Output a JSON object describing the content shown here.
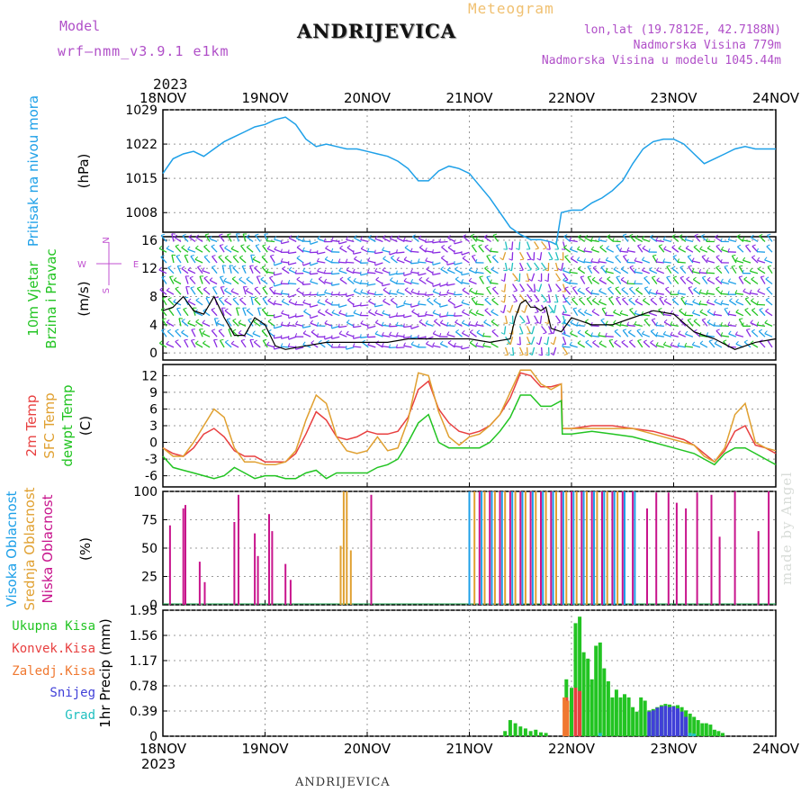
{
  "header": {
    "model_label": "Model",
    "model_name": "wrf–nmm_v3.9.1  e1km",
    "station": "ANDRIJEVICA",
    "meteogram": "Meteogram",
    "lonlat": "lon,lat (19.7812E, 42.7188N)",
    "elevation": "Nadmorska Visina 779m",
    "model_elevation": "Nadmorska Visina u modelu 1045.44m",
    "year_top": "2023"
  },
  "footer": {
    "station": "ANDRIJEVICA",
    "credit": "made by Angel"
  },
  "colors": {
    "pressure": "#1ea0e8",
    "wind_green": "#22c422",
    "wind_label": "#c050d0",
    "t2m": "#e84040",
    "tsfc": "#e0a030",
    "dewp": "#22c422",
    "high_cloud": "#1ea0e8",
    "mid_cloud": "#e0a030",
    "low_cloud": "#c8148c",
    "total_precip": "#22c422",
    "conv": "#e84040",
    "frz": "#f07830",
    "snow": "#4040d8",
    "hail": "#20c0c0"
  },
  "chart_data": [
    {
      "type": "line",
      "title": "Pritisak na nivou mora",
      "ylabel": "(hPa)",
      "ylim": [
        1004,
        1029
      ],
      "yticks": [
        "1029",
        "1022",
        "1015",
        "1008"
      ],
      "ytick_values": [
        1029,
        1022,
        1015,
        1008
      ],
      "x_tick_labels": [
        "18NOV",
        "19NOV",
        "20NOV",
        "21NOV",
        "22NOV",
        "23NOV",
        "24NOV"
      ],
      "xlim_days": [
        0,
        6
      ],
      "grid": true,
      "series": [
        {
          "name": "Pritisak na nivou mora",
          "x": [
            0,
            0.1,
            0.2,
            0.3,
            0.4,
            0.5,
            0.6,
            0.7,
            0.8,
            0.9,
            1.0,
            1.1,
            1.2,
            1.3,
            1.4,
            1.5,
            1.6,
            1.7,
            1.8,
            1.9,
            2.0,
            2.1,
            2.2,
            2.3,
            2.4,
            2.5,
            2.6,
            2.7,
            2.8,
            2.9,
            3.0,
            3.1,
            3.2,
            3.3,
            3.4,
            3.5,
            3.6,
            3.7,
            3.8,
            3.85,
            3.9,
            4.0,
            4.1,
            4.2,
            4.3,
            4.4,
            4.5,
            4.6,
            4.7,
            4.8,
            4.9,
            5.0,
            5.1,
            5.2,
            5.3,
            5.4,
            5.5,
            5.6,
            5.7,
            5.8,
            5.9,
            6.0
          ],
          "y": [
            1016,
            1019,
            1020,
            1020.5,
            1019.5,
            1021,
            1022.5,
            1023.5,
            1024.5,
            1025.5,
            1026,
            1027,
            1027.5,
            1026,
            1023,
            1021.5,
            1022,
            1021.5,
            1021,
            1021,
            1020.5,
            1020,
            1019.5,
            1018.5,
            1017,
            1014.5,
            1014.5,
            1016.5,
            1017.5,
            1017,
            1016,
            1013.5,
            1011,
            1008,
            1005,
            1003.5,
            1002.5,
            1002.5,
            1002,
            1001.5,
            1008,
            1008.5,
            1008.5,
            1010,
            1011,
            1012.5,
            1014.5,
            1018,
            1021,
            1022.5,
            1023,
            1023,
            1022,
            1020,
            1018,
            1019,
            1020,
            1021,
            1021.5,
            1021,
            1021,
            1021
          ]
        }
      ]
    },
    {
      "type": "line",
      "title": "10m Vjetar Brzina i Pravac",
      "ylabel": "(m/s)",
      "ylim": [
        -1,
        16.5
      ],
      "yticks": [
        "16",
        "12",
        "8",
        "4",
        "0"
      ],
      "ytick_values": [
        16,
        12,
        8,
        4,
        0
      ],
      "compass": {
        "north": "N",
        "south": "S",
        "east": "E",
        "west": "W"
      },
      "grid": true,
      "series": [
        {
          "name": "10m Vjetar",
          "x": [
            0,
            0.1,
            0.2,
            0.3,
            0.4,
            0.5,
            0.6,
            0.7,
            0.8,
            0.9,
            1.0,
            1.1,
            1.2,
            1.4,
            1.6,
            1.8,
            2.0,
            2.2,
            2.4,
            2.6,
            2.8,
            3.0,
            3.2,
            3.4,
            3.45,
            3.5,
            3.55,
            3.6,
            3.65,
            3.7,
            3.75,
            3.8,
            3.9,
            4.0,
            4.2,
            4.4,
            4.6,
            4.8,
            5.0,
            5.2,
            5.4,
            5.6,
            5.8,
            6.0
          ],
          "y": [
            6,
            6.5,
            8,
            6,
            5.5,
            8,
            5,
            2.5,
            2.5,
            5,
            4,
            1,
            0.5,
            1,
            1.5,
            1.5,
            1.5,
            1.5,
            2,
            2,
            2,
            2,
            1.5,
            2,
            5,
            7,
            7.5,
            6.5,
            6.5,
            6,
            6.5,
            3.5,
            3,
            5,
            4,
            4,
            5,
            6,
            5.5,
            3,
            2,
            0.5,
            1.5,
            2
          ]
        }
      ]
    },
    {
      "type": "line",
      "title": "2m Temp / SFC Temp / dewpt Temp",
      "ylabel": "(C)",
      "ylim": [
        -8,
        14
      ],
      "yticks": [
        "12",
        "9",
        "6",
        "3",
        "0",
        "-3",
        "-6"
      ],
      "ytick_values": [
        12,
        9,
        6,
        3,
        0,
        -3,
        -6
      ],
      "grid": true,
      "x": [
        0,
        0.1,
        0.2,
        0.3,
        0.4,
        0.5,
        0.6,
        0.7,
        0.8,
        0.9,
        1.0,
        1.1,
        1.2,
        1.3,
        1.4,
        1.5,
        1.6,
        1.7,
        1.8,
        1.9,
        2.0,
        2.1,
        2.2,
        2.3,
        2.4,
        2.5,
        2.6,
        2.7,
        2.8,
        2.9,
        3.0,
        3.1,
        3.2,
        3.3,
        3.4,
        3.5,
        3.6,
        3.7,
        3.8,
        3.9,
        3.91,
        4.0,
        4.2,
        4.4,
        4.6,
        4.8,
        5.0,
        5.1,
        5.2,
        5.3,
        5.4,
        5.5,
        5.6,
        5.7,
        5.8,
        5.9,
        6.0
      ],
      "series": [
        {
          "name": "2m Temp",
          "values": [
            -1,
            -2,
            -2.5,
            -1,
            1.5,
            2.5,
            1,
            -1.5,
            -2.5,
            -2.5,
            -3.5,
            -3.5,
            -3.5,
            -2,
            1.5,
            5.5,
            4,
            1,
            0.5,
            1,
            2,
            1.5,
            1.5,
            2,
            4.5,
            9.5,
            11,
            6,
            3.5,
            2,
            1.5,
            2,
            3,
            5,
            8,
            12.5,
            12,
            10,
            10,
            10.5,
            2.5,
            2.5,
            3,
            3,
            2.5,
            2,
            1,
            0.5,
            -0.5,
            -2,
            -3.5,
            -1.5,
            2,
            3,
            -0.5,
            -1,
            -2
          ]
        },
        {
          "name": "SFC Temp",
          "values": [
            -1,
            -2.5,
            -2.5,
            0,
            3,
            6,
            4.5,
            -1,
            -3.5,
            -3.5,
            -4,
            -4,
            -3.5,
            -1.5,
            4,
            8.5,
            7,
            1,
            -1.5,
            -2,
            -1.5,
            1,
            -1.5,
            -1,
            4,
            12.5,
            12,
            5.5,
            1,
            -0.5,
            1,
            1.5,
            3,
            5,
            9,
            13,
            13,
            10.5,
            9.5,
            10.5,
            2.5,
            2.5,
            2.5,
            2.5,
            2.5,
            1.5,
            0.5,
            0,
            -0.5,
            -2.5,
            -3.5,
            -1,
            5,
            7,
            0,
            -1,
            -1.5
          ]
        },
        {
          "name": "dewpt Temp",
          "values": [
            -2.5,
            -4.5,
            -5,
            -5.5,
            -6,
            -6.5,
            -6,
            -4.5,
            -5.5,
            -6.5,
            -6,
            -6,
            -6.5,
            -6.5,
            -5.5,
            -5,
            -6.5,
            -5.5,
            -5.5,
            -5.5,
            -5.5,
            -4.5,
            -4,
            -3,
            0,
            3.5,
            5,
            0,
            -1,
            -1,
            -1,
            -1,
            0,
            2,
            4.5,
            8.5,
            8.5,
            6.5,
            6.5,
            7.5,
            1.5,
            1.5,
            2,
            1.5,
            1,
            0,
            -1,
            -1.5,
            -2,
            -3,
            -4,
            -2,
            -1,
            -1,
            -2,
            -3,
            -4
          ]
        }
      ]
    },
    {
      "type": "bar",
      "title": "Visoka Oblacnost / Srednja Oblacnost / Niska Oblacnost",
      "ylabel": "(%)",
      "ylim": [
        0,
        100
      ],
      "yticks": [
        "100",
        "75",
        "50",
        "25",
        "0"
      ],
      "ytick_values": [
        100,
        75,
        50,
        25,
        0
      ],
      "grid": true,
      "series": [
        {
          "name": "Niska Oblacnost",
          "x": [
            0.07,
            0.2,
            0.22,
            0.36,
            0.41,
            0.7,
            0.74,
            0.9,
            0.93,
            1.04,
            1.07,
            1.2,
            1.25,
            2.04,
            3.1,
            3.2,
            3.3,
            3.4,
            3.5,
            3.6,
            3.7,
            3.8,
            3.9,
            4.0,
            4.1,
            4.2,
            4.3,
            4.4,
            4.5,
            4.6,
            4.74,
            4.83,
            4.95,
            5.03,
            5.12,
            5.23,
            5.37,
            5.45,
            5.6,
            5.83,
            5.93
          ],
          "y": [
            70,
            85,
            88,
            38,
            20,
            73,
            97,
            63,
            43,
            80,
            65,
            36,
            22,
            97,
            100,
            100,
            100,
            100,
            100,
            100,
            100,
            100,
            100,
            100,
            100,
            100,
            100,
            100,
            100,
            100,
            85,
            99,
            99,
            90,
            85,
            99,
            97,
            60,
            100,
            65,
            100
          ]
        },
        {
          "name": "Srednja Oblacnost",
          "x": [
            1.74,
            1.77,
            1.8,
            1.84,
            3.05,
            3.15,
            3.25,
            3.35,
            3.45,
            3.55,
            3.65,
            3.75,
            3.85,
            3.95,
            4.05,
            4.15,
            4.25,
            4.35,
            4.45
          ],
          "y": [
            52,
            100,
            100,
            48,
            100,
            100,
            100,
            100,
            100,
            100,
            100,
            100,
            100,
            100,
            100,
            100,
            100,
            100,
            100
          ]
        },
        {
          "name": "Visoka Oblacnost",
          "x": [
            3.0,
            3.12,
            3.22,
            3.32,
            3.42,
            3.52,
            3.62,
            3.72,
            3.82,
            3.92,
            4.02,
            4.12,
            4.22,
            4.32,
            4.42,
            4.52,
            4.62
          ],
          "y": [
            100,
            100,
            100,
            100,
            100,
            100,
            100,
            100,
            100,
            100,
            100,
            100,
            100,
            100,
            100,
            100,
            100
          ]
        }
      ]
    },
    {
      "type": "bar",
      "title": "Ukupna Kisa / Konvek.Kisa / Zaledj.Kisa / Snijeg / Grad",
      "ylabel": "1hr Precip (mm)",
      "ylim": [
        0,
        1.95
      ],
      "yticks": [
        "1.95",
        "1.56",
        "1.17",
        "0.78",
        "0.39",
        "0"
      ],
      "ytick_values": [
        1.95,
        1.56,
        1.17,
        0.78,
        0.39,
        0
      ],
      "legend": [
        "Ukupna Kisa",
        "Konvek.Kisa",
        "Zaledj.Kisa",
        "Snijeg",
        "Grad"
      ],
      "grid": true,
      "series": [
        {
          "name": "Ukupna Kisa",
          "x": [
            3.35,
            3.4,
            3.45,
            3.5,
            3.55,
            3.6,
            3.65,
            3.7,
            3.75,
            3.95,
            4.0,
            4.04,
            4.08,
            4.12,
            4.16,
            4.2,
            4.24,
            4.28,
            4.32,
            4.36,
            4.4,
            4.44,
            4.48,
            4.52,
            4.56,
            4.6,
            4.64,
            4.68,
            4.72,
            4.76,
            4.8,
            4.84,
            4.88,
            4.92,
            4.96,
            5.0,
            5.04,
            5.08,
            5.12,
            5.16,
            5.2,
            5.24,
            5.28,
            5.32,
            5.36,
            5.4,
            5.44,
            5.48
          ],
          "y": [
            0.08,
            0.25,
            0.2,
            0.15,
            0.12,
            0.08,
            0.1,
            0.06,
            0.05,
            0.88,
            0.75,
            1.75,
            1.85,
            1.3,
            1.2,
            0.88,
            1.4,
            1.45,
            1.05,
            0.85,
            0.6,
            0.72,
            0.6,
            0.65,
            0.6,
            0.45,
            0.38,
            0.6,
            0.55,
            0.4,
            0.42,
            0.45,
            0.48,
            0.5,
            0.49,
            0.47,
            0.48,
            0.45,
            0.4,
            0.35,
            0.3,
            0.25,
            0.2,
            0.2,
            0.18,
            0.1,
            0.08,
            0.05
          ]
        },
        {
          "name": "Konvek.Kisa",
          "x": [
            3.95,
            4.04,
            4.08
          ],
          "y": [
            0.6,
            0.75,
            0.7
          ]
        },
        {
          "name": "Zaledj.Kisa",
          "x": [
            3.93,
            3.96
          ],
          "y": [
            0.6,
            0.55
          ]
        },
        {
          "name": "Snijeg",
          "x": [
            4.76,
            4.8,
            4.84,
            4.88,
            4.92,
            4.96,
            5.0,
            5.04,
            5.08,
            5.12
          ],
          "y": [
            0.38,
            0.4,
            0.44,
            0.46,
            0.47,
            0.45,
            0.46,
            0.43,
            0.38,
            0.3
          ]
        },
        {
          "name": "Grad",
          "x": [
            4.28,
            5.16,
            5.2
          ],
          "y": [
            0.05,
            0.05,
            0.04
          ]
        }
      ]
    }
  ]
}
